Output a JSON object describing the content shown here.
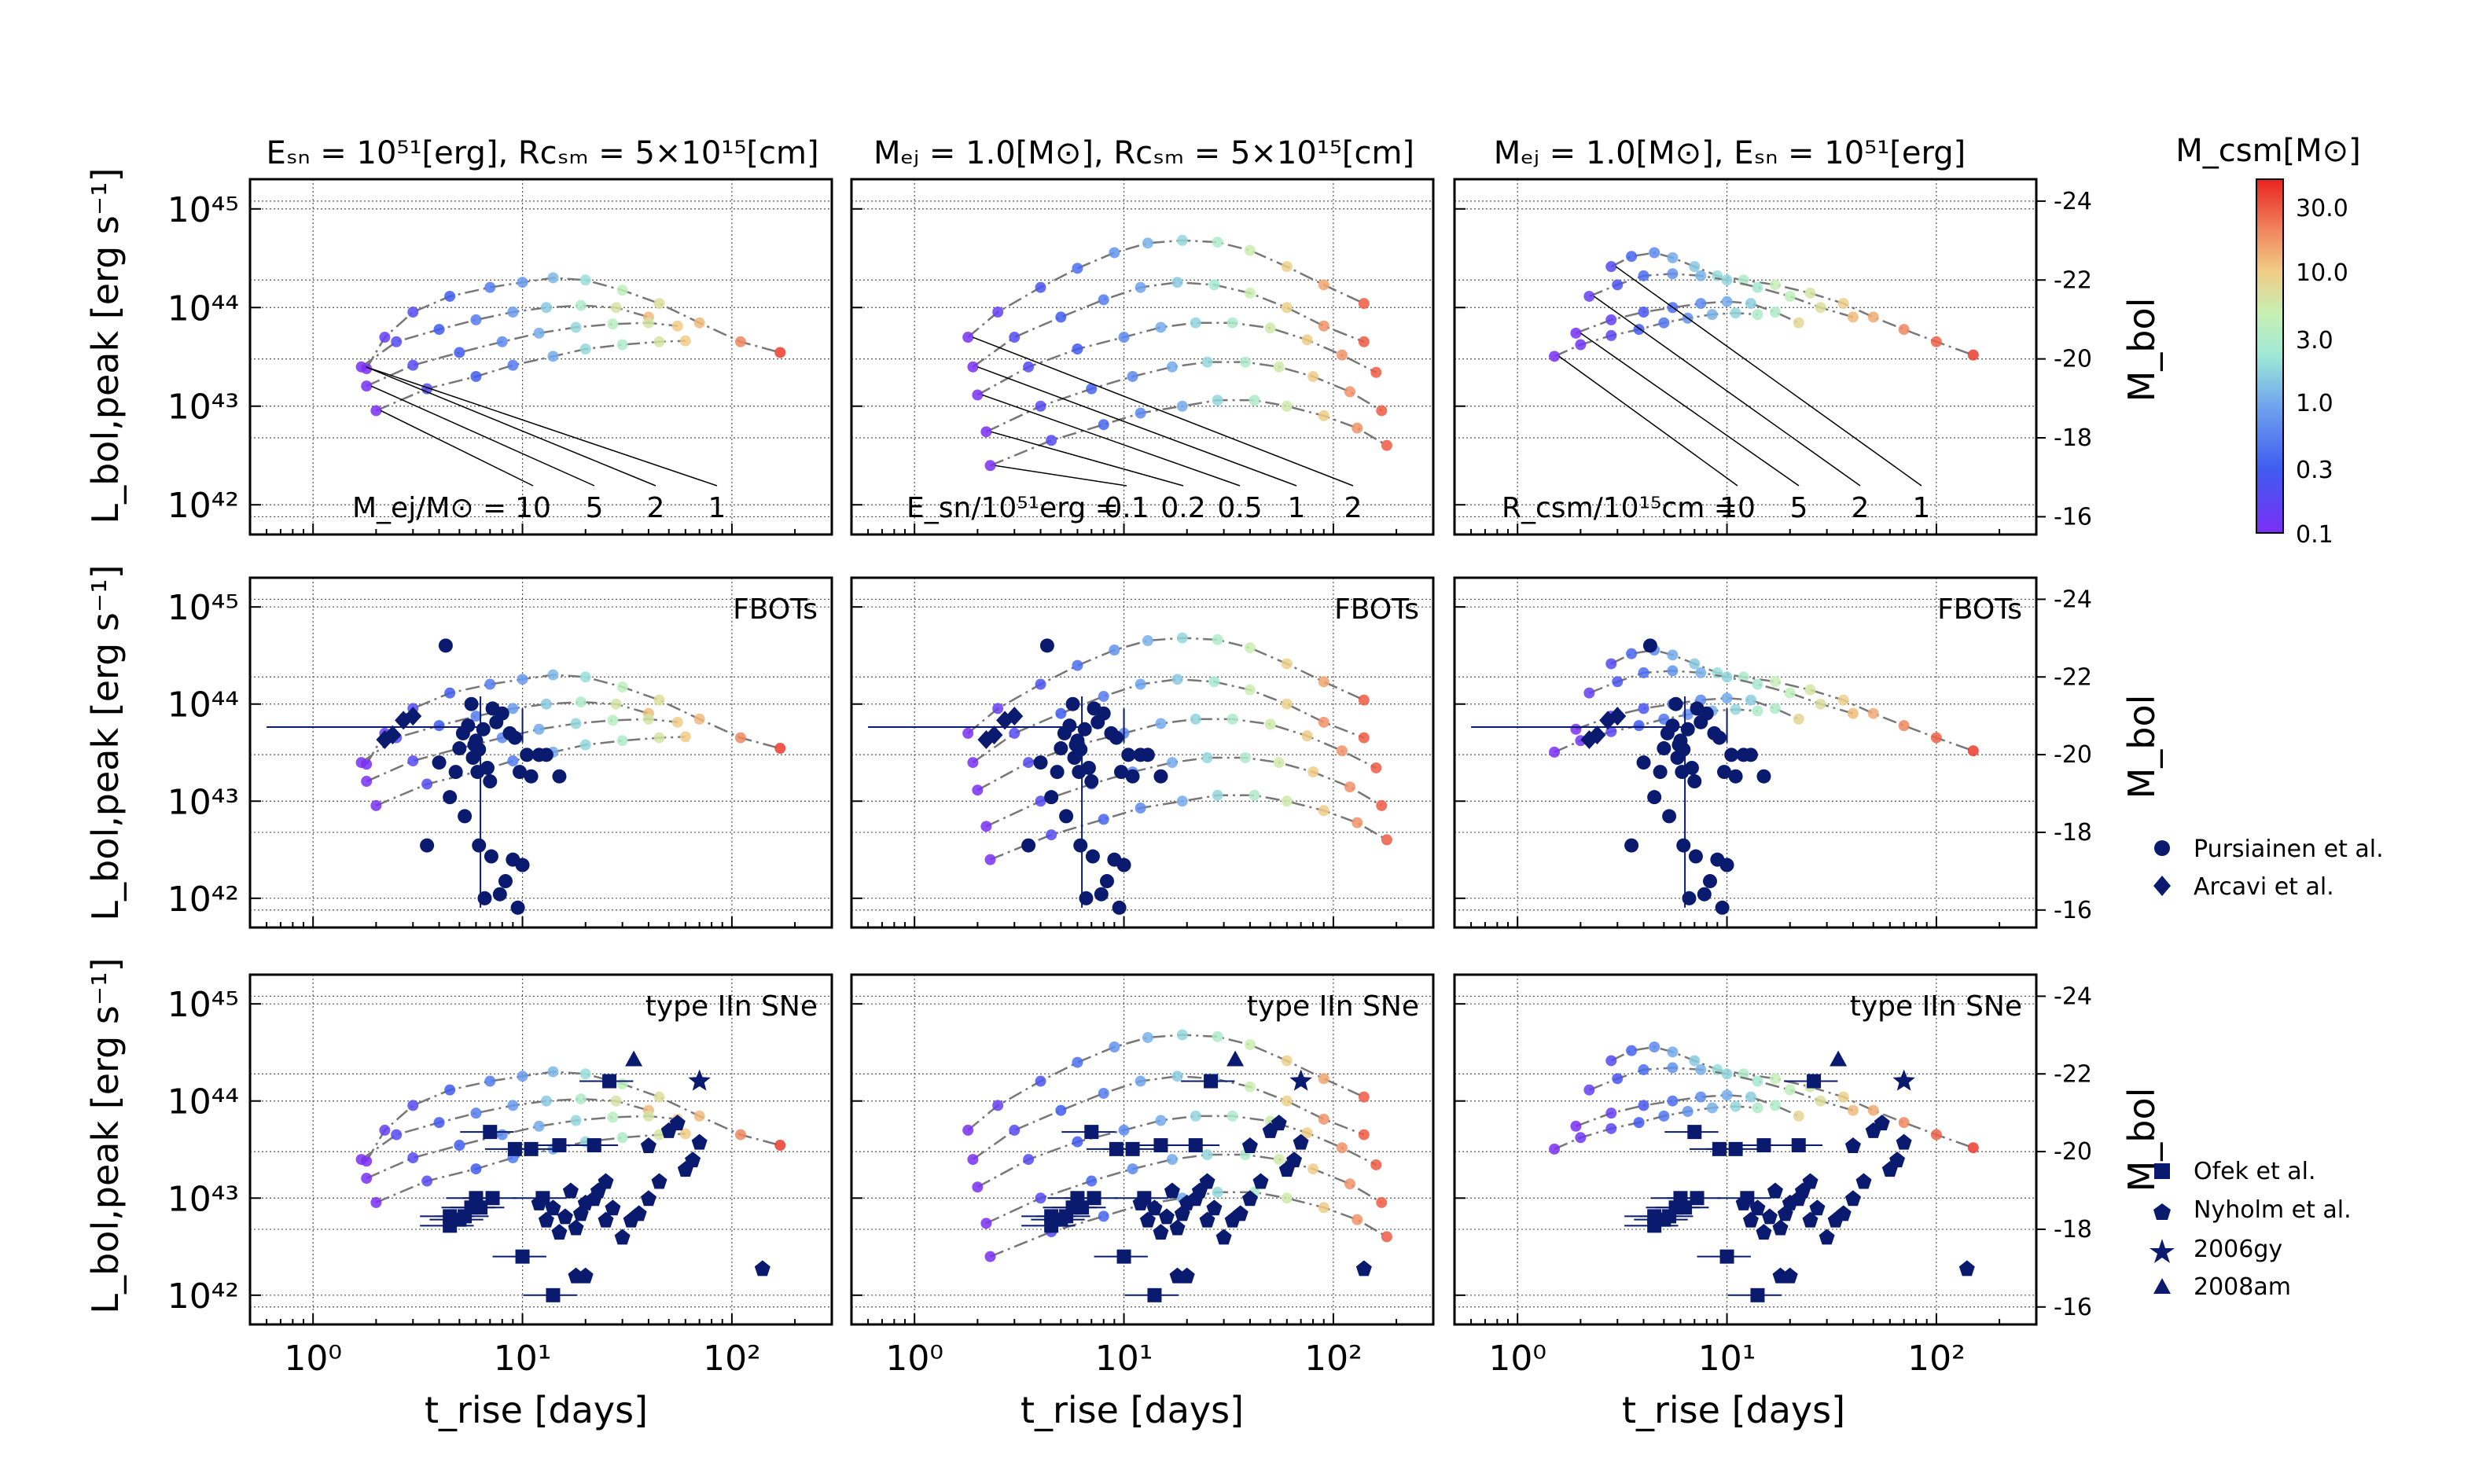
{
  "figure": {
    "col_titles": [
      "Eₛₙ = 10⁵¹[erg],  Rᴄₛₘ = 5×10¹⁵[cm]",
      "Mₑⱼ = 1.0[M⊙],  Rᴄₛₘ = 5×10¹⁵[cm]",
      "Mₑⱼ = 1.0[M⊙],  Eₛₙ = 10⁵¹[erg]"
    ],
    "ylabel_left": "L_bol,peak [erg s⁻¹]",
    "ylabel_right": "M_bol",
    "xlabel": "t_rise [days]",
    "row_tags": [
      "",
      "FBOTs",
      "type IIn SNe"
    ],
    "param_labels": [
      "M_ej/M⊙ =",
      "E_sn/10⁵¹erg =",
      "R_csm/10¹⁵cm ="
    ],
    "param_values": [
      [
        "10",
        "5",
        "2",
        "1"
      ],
      [
        "0.1",
        "0.2",
        "0.5",
        "1",
        "2"
      ],
      [
        "10",
        "5",
        "2",
        "1"
      ]
    ],
    "colorbar": {
      "label": "M_csm[M⊙]",
      "ticks": [
        "30.0",
        "10.0",
        "3.0",
        "1.0",
        "0.3",
        "0.1"
      ],
      "scale": "log",
      "colormap": "rainbow",
      "range": [
        0.1,
        50
      ]
    },
    "legend_fbots": [
      "Pursiainen et al.",
      "Arcavi et al."
    ],
    "legend_iin": [
      "Ofek et al.",
      "Nyholm et al.",
      "2006gy",
      "2008am"
    ],
    "marker_color": "#0a1a6e",
    "x_ticks": [
      "10⁰",
      "10¹",
      "10²"
    ],
    "y_ticks": [
      "10⁴²",
      "10⁴³",
      "10⁴⁴",
      "10⁴⁵"
    ],
    "y2_ticks": [
      "-16",
      "-18",
      "-20",
      "-22",
      "-24"
    ]
  },
  "chart_data": [
    {
      "type": "scatter",
      "xscale": "log",
      "yscale": "log",
      "xlim": [
        0.5,
        300
      ],
      "ylim": [
        5e+41,
        2e+45
      ],
      "xlabel": "t_rise [days]",
      "ylabel": "L_bol,peak [erg s⁻¹]",
      "grid": true,
      "model_sets": [
        {
          "param": "M_ej",
          "tracks": [
            {
              "label": "1",
              "x": [
                1.8,
                2.2,
                3,
                4.5,
                7,
                10,
                14,
                20,
                30,
                45,
                70,
                110,
                170
              ],
              "y": [
                2.4e+43,
                5e+43,
                9e+43,
                1.3e+44,
                1.6e+44,
                1.8e+44,
                2e+44,
                1.9e+44,
                1.5e+44,
                1.1e+44,
                7e+43,
                4.5e+43,
                3.5e+43
              ],
              "mcsm": [
                0.1,
                0.15,
                0.2,
                0.3,
                0.5,
                0.8,
                1.2,
                2,
                4,
                7,
                12,
                20,
                40
              ]
            },
            {
              "label": "2",
              "x": [
                1.7,
                2.5,
                4,
                6,
                9,
                13,
                19,
                28,
                40
              ],
              "y": [
                2.5e+43,
                4.5e+43,
                6e+43,
                7.5e+43,
                9e+43,
                1e+44,
                1.05e+44,
                1e+44,
                8e+43
              ],
              "mcsm": [
                0.1,
                0.2,
                0.3,
                0.5,
                0.8,
                1.5,
                3,
                6,
                12
              ]
            },
            {
              "label": "5",
              "x": [
                1.8,
                3,
                5,
                8,
                12,
                18,
                27,
                40,
                55
              ],
              "y": [
                1.6e+43,
                2.6e+43,
                3.5e+43,
                4.5e+43,
                5.5e+43,
                6.3e+43,
                6.8e+43,
                7e+43,
                6.5e+43
              ],
              "mcsm": [
                0.1,
                0.2,
                0.3,
                0.6,
                1,
                1.8,
                3.5,
                6,
                10
              ]
            },
            {
              "label": "10",
              "x": [
                2,
                3.5,
                6,
                9,
                14,
                20,
                30,
                45,
                60
              ],
              "y": [
                9e+42,
                1.5e+43,
                2e+43,
                2.6e+43,
                3.2e+43,
                3.8e+43,
                4.2e+43,
                4.5e+43,
                4.6e+43
              ],
              "mcsm": [
                0.1,
                0.2,
                0.3,
                0.5,
                1,
                1.8,
                3,
                6,
                10
              ]
            }
          ]
        },
        {
          "param": "E_sn",
          "tracks": [
            {
              "label": "2",
              "x": [
                1.8,
                2.5,
                4,
                6,
                9,
                13,
                19,
                28,
                40,
                60,
                90,
                140
              ],
              "y": [
                5e+43,
                9e+43,
                1.6e+44,
                2.5e+44,
                3.6e+44,
                4.5e+44,
                4.8e+44,
                4.6e+44,
                3.8e+44,
                2.6e+44,
                1.7e+44,
                1.1e+44
              ],
              "mcsm": [
                0.1,
                0.15,
                0.25,
                0.4,
                0.7,
                1.1,
                1.8,
                3,
                5,
                9,
                15,
                30
              ]
            },
            {
              "label": "1",
              "x": [
                1.9,
                3,
                5,
                8,
                12,
                18,
                27,
                40,
                60,
                90,
                140
              ],
              "y": [
                2.5e+43,
                5e+43,
                8e+43,
                1.2e+44,
                1.6e+44,
                1.8e+44,
                1.7e+44,
                1.4e+44,
                1e+44,
                6.5e+43,
                4.5e+43
              ],
              "mcsm": [
                0.1,
                0.2,
                0.3,
                0.5,
                0.9,
                1.5,
                2.5,
                5,
                9,
                18,
                30
              ]
            },
            {
              "label": "0.5",
              "x": [
                2,
                3.5,
                6,
                10,
                15,
                22,
                33,
                50,
                75,
                110,
                160
              ],
              "y": [
                1.3e+43,
                2.5e+43,
                3.8e+43,
                5e+43,
                6.3e+43,
                7e+43,
                7e+43,
                6.2e+43,
                4.7e+43,
                3.3e+43,
                2.2e+43
              ],
              "mcsm": [
                0.1,
                0.2,
                0.3,
                0.6,
                1,
                1.7,
                3,
                5.5,
                10,
                18,
                30
              ]
            },
            {
              "label": "0.2",
              "x": [
                2.2,
                4,
                7,
                11,
                17,
                25,
                38,
                55,
                80,
                120,
                170
              ],
              "y": [
                5.5e+42,
                1e+43,
                1.5e+43,
                2e+43,
                2.5e+43,
                2.8e+43,
                2.8e+43,
                2.5e+43,
                2e+43,
                1.4e+43,
                9e+42
              ],
              "mcsm": [
                0.1,
                0.2,
                0.35,
                0.6,
                1,
                1.8,
                3,
                5.5,
                10,
                18,
                30
              ]
            },
            {
              "label": "0.1",
              "x": [
                2.3,
                4.5,
                8,
                12,
                19,
                28,
                42,
                60,
                90,
                130,
                180
              ],
              "y": [
                2.5e+42,
                4.5e+42,
                6.5e+42,
                8.5e+42,
                1e+43,
                1.15e+43,
                1.15e+43,
                1e+43,
                8e+42,
                6e+42,
                4e+42
              ],
              "mcsm": [
                0.1,
                0.2,
                0.35,
                0.6,
                1,
                1.8,
                3,
                5.5,
                10,
                18,
                30
              ]
            }
          ]
        },
        {
          "param": "R_csm",
          "tracks": [
            {
              "label": "1",
              "x": [
                2.8,
                3.5,
                4.5,
                5.5,
                7,
                9,
                12,
                17,
                25,
                36,
                50,
                70,
                100,
                150
              ],
              "y": [
                2.6e+44,
                3.3e+44,
                3.6e+44,
                3.2e+44,
                2.6e+44,
                2.1e+44,
                1.9e+44,
                1.7e+44,
                1.4e+44,
                1.1e+44,
                8e+43,
                6e+43,
                4.5e+43,
                3.3e+43
              ],
              "mcsm": [
                0.2,
                0.35,
                0.6,
                1,
                1.5,
                2,
                3,
                4.5,
                6,
                9,
                14,
                20,
                28,
                40
              ]
            },
            {
              "label": "2",
              "x": [
                2.2,
                3,
                4,
                5.5,
                7.5,
                10,
                14,
                20,
                28,
                40
              ],
              "y": [
                1.3e+44,
                1.7e+44,
                2.1e+44,
                2.2e+44,
                2.1e+44,
                1.9e+44,
                1.6e+44,
                1.3e+44,
                1e+44,
                8e+43
              ],
              "mcsm": [
                0.15,
                0.25,
                0.4,
                0.7,
                1.1,
                1.7,
                2.5,
                4,
                7,
                12
              ]
            },
            {
              "label": "5",
              "x": [
                1.9,
                2.8,
                4,
                5.5,
                7.5,
                10,
                13,
                17,
                22
              ],
              "y": [
                5.5e+43,
                7.5e+43,
                9e+43,
                1e+44,
                1.1e+44,
                1.15e+44,
                1.1e+44,
                9e+43,
                7e+43
              ],
              "mcsm": [
                0.1,
                0.15,
                0.25,
                0.4,
                0.6,
                1,
                1.6,
                3,
                8
              ]
            },
            {
              "label": "10",
              "x": [
                1.5,
                2,
                2.8,
                3.8,
                5,
                6.5,
                8.5,
                11,
                14
              ],
              "y": [
                3.2e+43,
                4.2e+43,
                5.2e+43,
                6e+43,
                7e+43,
                7.8e+43,
                8.5e+43,
                8.8e+43,
                8.5e+43
              ],
              "mcsm": [
                0.1,
                0.12,
                0.18,
                0.3,
                0.45,
                0.7,
                1.1,
                1.8,
                3
              ]
            }
          ]
        }
      ],
      "fbots": {
        "pursiainen": {
          "x": [
            4.3,
            3.5,
            4.5,
            4.8,
            5,
            5.2,
            5.5,
            5.7,
            5.8,
            6,
            6.2,
            6.5,
            6.8,
            7,
            7.2,
            7.5,
            8,
            8.3,
            9,
            9.5,
            10,
            10.5,
            11,
            12,
            13,
            15,
            4,
            5.3,
            6.2,
            6.6,
            7.1,
            7.8,
            8.7,
            9.2,
            9.7,
            5.9,
            6.1
          ],
          "y": [
            4e+44,
            3.5e+42,
            1.1e+43,
            2e+43,
            3.5e+43,
            5e+43,
            6e+43,
            1e+44,
            2.8e+43,
            4.2e+43,
            3.4e+43,
            5.5e+43,
            2.2e+43,
            1.6e+43,
            9e+43,
            6.5e+43,
            8e+43,
            1.5e+42,
            2.5e+42,
            8e+41,
            2.2e+42,
            3e+43,
            1.8e+43,
            3e+43,
            3e+43,
            1.8e+43,
            2.5e+43,
            7e+42,
            3.5e+42,
            1e+42,
            2.7e+42,
            1.1e+42,
            5e+43,
            4.5e+43,
            2e+43,
            3.8e+43,
            2e+43
          ]
        },
        "arcavi": {
          "x": [
            2.2,
            2.4,
            2.7,
            3.0
          ],
          "y": [
            4.3e+43,
            4.8e+43,
            6.8e+43,
            7.5e+43
          ]
        }
      },
      "iin": {
        "ofek": {
          "x": [
            4.5,
            5.3,
            6,
            7,
            10,
            11,
            14,
            15,
            22,
            26,
            4.5,
            5,
            5.7,
            6.3,
            7.2,
            9.2,
            12.5
          ],
          "y": [
            5.2e+42,
            6.5e+42,
            1e+43,
            4.8e+43,
            2.5e+42,
            3.2e+43,
            1e+42,
            3.5e+43,
            3.5e+43,
            1.6e+44,
            6.5e+42,
            6e+42,
            8e+42,
            8e+42,
            1e+43,
            3.2e+43,
            1e+43
          ]
        },
        "nyholm": {
          "x": [
            12,
            13,
            14,
            15,
            16,
            17,
            18,
            19,
            20,
            22,
            25,
            27,
            30,
            33,
            36,
            40,
            45,
            50,
            55,
            60,
            65,
            70,
            40,
            18,
            20,
            25,
            23,
            140
          ],
          "y": [
            9e+42,
            6e+42,
            8e+42,
            4.5e+42,
            6.5e+42,
            1.2e+43,
            5e+42,
            7e+42,
            9e+42,
            1e+43,
            6e+42,
            8e+42,
            4e+42,
            6e+42,
            7e+42,
            1e+43,
            1.5e+43,
            5e+43,
            6e+43,
            2e+43,
            2.5e+43,
            3.8e+43,
            3.5e+43,
            1.6e+42,
            1.6e+42,
            1.5e+43,
            1.2e+43,
            1.9e+42
          ]
        },
        "2006gy": {
          "x": [
            70
          ],
          "y": [
            1.6e+44
          ]
        },
        "2008am": {
          "x": [
            34
          ],
          "y": [
            2.7e+44
          ]
        }
      }
    }
  ]
}
